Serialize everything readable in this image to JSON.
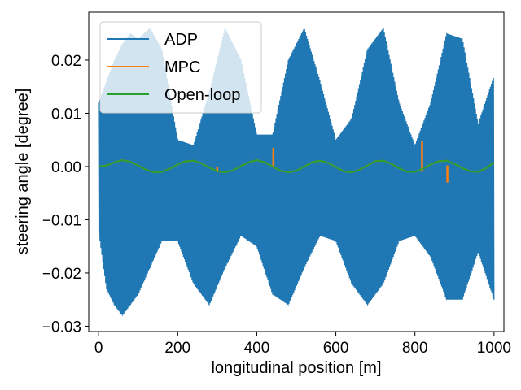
{
  "chart_data": {
    "type": "line",
    "title": "",
    "xlabel": "longitudinal position [m]",
    "ylabel": "steering angle [degree]",
    "xlim": [
      -25,
      1025
    ],
    "ylim": [
      -0.031,
      0.029
    ],
    "xticks": [
      0,
      200,
      400,
      600,
      800,
      1000
    ],
    "xtick_labels": [
      "0",
      "200",
      "400",
      "600",
      "800",
      "1000"
    ],
    "yticks": [
      -0.03,
      -0.02,
      -0.01,
      0.0,
      0.01,
      0.02
    ],
    "ytick_labels": [
      "−0.03",
      "−0.02",
      "−0.01",
      "0.00",
      "0.01",
      "0.02"
    ],
    "grid": false,
    "legend_position": "top-left",
    "series": [
      {
        "name": "ADP",
        "color": "#1f77b4",
        "style": "rapid oscillation filling envelope",
        "x": [
          0,
          20,
          40,
          60,
          80,
          100,
          130,
          160,
          200,
          240,
          280,
          320,
          360,
          400,
          440,
          480,
          520,
          560,
          600,
          640,
          680,
          720,
          760,
          800,
          840,
          880,
          920,
          960,
          1000
        ],
        "upper": [
          0.012,
          0.016,
          0.02,
          0.023,
          0.025,
          0.024,
          0.026,
          0.022,
          0.005,
          0.004,
          0.014,
          0.026,
          0.02,
          0.006,
          0.006,
          0.02,
          0.026,
          0.016,
          0.005,
          0.009,
          0.022,
          0.026,
          0.012,
          0.004,
          0.012,
          0.025,
          0.024,
          0.008,
          0.017
        ],
        "lower": [
          -0.012,
          -0.023,
          -0.026,
          -0.028,
          -0.026,
          -0.024,
          -0.019,
          -0.014,
          -0.014,
          -0.022,
          -0.026,
          -0.019,
          -0.013,
          -0.015,
          -0.024,
          -0.026,
          -0.019,
          -0.013,
          -0.014,
          -0.022,
          -0.026,
          -0.022,
          -0.014,
          -0.013,
          -0.017,
          -0.025,
          -0.025,
          -0.016,
          -0.025
        ]
      },
      {
        "name": "MPC",
        "color": "#ff7f0e",
        "x": [
          0,
          20,
          40,
          60,
          80,
          100,
          120,
          140,
          160,
          180,
          200,
          220,
          240,
          260,
          280,
          300,
          320,
          340,
          360,
          380,
          400,
          420,
          440,
          460,
          480,
          500,
          520,
          540,
          560,
          580,
          600,
          620,
          640,
          660,
          680,
          700,
          720,
          740,
          760,
          780,
          800,
          820,
          840,
          860,
          880,
          900,
          920,
          940,
          960,
          980,
          1000
        ],
        "y": [
          0.0,
          0.0002,
          0.0008,
          0.0012,
          0.0009,
          0.0002,
          -0.0006,
          -0.0011,
          -0.001,
          -0.0004,
          0.0004,
          0.001,
          0.0011,
          0.0006,
          -0.0002,
          -0.0009,
          -0.0011,
          -0.0007,
          0.0001,
          0.0008,
          0.0012,
          0.0008,
          0.0,
          -0.0008,
          -0.0011,
          -0.0008,
          0.0,
          0.0008,
          0.0011,
          0.0007,
          -0.0001,
          -0.0009,
          -0.0011,
          -0.0006,
          0.0002,
          0.001,
          0.0011,
          0.0005,
          -0.0003,
          -0.001,
          -0.001,
          -0.0004,
          0.0004,
          0.001,
          0.0011,
          0.0005,
          -0.0003,
          -0.0009,
          -0.001,
          -0.0003,
          0.0008
        ],
        "spikes": [
          {
            "x": 300,
            "min": -0.001,
            "max": 0.0
          },
          {
            "x": 442,
            "min": -0.0002,
            "max": 0.0035
          },
          {
            "x": 818,
            "min": -0.001,
            "max": 0.0048
          },
          {
            "x": 882,
            "min": -0.003,
            "max": 0.0002
          }
        ]
      },
      {
        "name": "Open-loop",
        "color": "#2ca02c",
        "x": [
          0,
          20,
          40,
          60,
          80,
          100,
          120,
          140,
          160,
          180,
          200,
          220,
          240,
          260,
          280,
          300,
          320,
          340,
          360,
          380,
          400,
          420,
          440,
          460,
          480,
          500,
          520,
          540,
          560,
          580,
          600,
          620,
          640,
          660,
          680,
          700,
          720,
          740,
          760,
          780,
          800,
          820,
          840,
          860,
          880,
          900,
          920,
          940,
          960,
          980,
          1000
        ],
        "y": [
          0.0,
          0.0002,
          0.0008,
          0.0012,
          0.0009,
          0.0002,
          -0.0006,
          -0.0011,
          -0.001,
          -0.0004,
          0.0004,
          0.001,
          0.0011,
          0.0006,
          -0.0002,
          -0.0009,
          -0.0011,
          -0.0007,
          0.0001,
          0.0008,
          0.0012,
          0.0008,
          0.0,
          -0.0008,
          -0.0011,
          -0.0008,
          0.0,
          0.0008,
          0.0011,
          0.0007,
          -0.0001,
          -0.0009,
          -0.0011,
          -0.0006,
          0.0002,
          0.001,
          0.0011,
          0.0005,
          -0.0003,
          -0.001,
          -0.001,
          -0.0004,
          0.0004,
          0.001,
          0.0011,
          0.0005,
          -0.0003,
          -0.0009,
          -0.001,
          -0.0003,
          0.0008
        ]
      }
    ]
  }
}
